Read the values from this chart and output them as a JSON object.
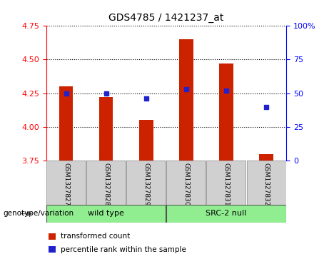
{
  "title": "GDS4785 / 1421237_at",
  "samples": [
    "GSM1327827",
    "GSM1327828",
    "GSM1327829",
    "GSM1327830",
    "GSM1327831",
    "GSM1327832"
  ],
  "bar_values": [
    4.3,
    4.22,
    4.05,
    4.65,
    4.47,
    3.8
  ],
  "dot_values": [
    50,
    50,
    46,
    53,
    52,
    40
  ],
  "bar_color": "#cc2200",
  "dot_color": "#2222cc",
  "ylim_left": [
    3.75,
    4.75
  ],
  "ylim_right": [
    0,
    100
  ],
  "yticks_left": [
    3.75,
    4.0,
    4.25,
    4.5,
    4.75
  ],
  "yticks_right": [
    0,
    25,
    50,
    75,
    100
  ],
  "group_label": "genotype/variation",
  "groups": [
    {
      "label": "wild type",
      "indices": [
        0,
        1,
        2
      ],
      "color": "#90ee90"
    },
    {
      "label": "SRC-2 null",
      "indices": [
        3,
        4,
        5
      ],
      "color": "#90ee90"
    }
  ],
  "legend_items": [
    {
      "color": "#cc2200",
      "label": "transformed count"
    },
    {
      "color": "#2222cc",
      "label": "percentile rank within the sample"
    }
  ],
  "tick_bg_color": "#d0d0d0",
  "bar_bottom": 3.75,
  "bar_width": 0.35
}
